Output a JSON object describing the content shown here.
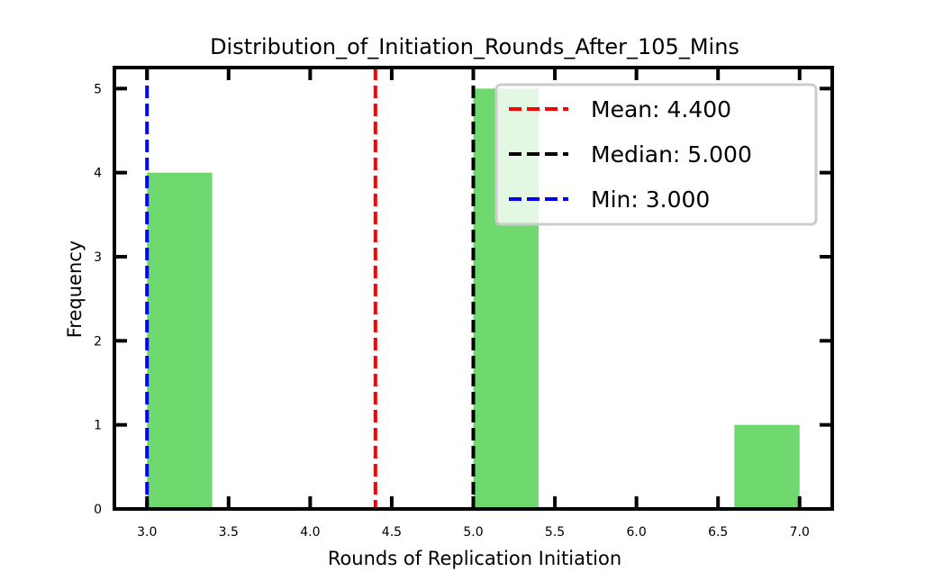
{
  "chart_data": {
    "type": "bar",
    "title": "Distribution_of_Initiation_Rounds_After_105_Mins",
    "xlabel": "Rounds of Replication Initiation",
    "ylabel": "Frequency",
    "xlim": [
      2.8,
      7.2
    ],
    "ylim": [
      0,
      5.25
    ],
    "xticks": [
      "3.0",
      "3.5",
      "4.0",
      "4.5",
      "5.0",
      "5.5",
      "6.0",
      "6.5",
      "7.0"
    ],
    "yticks": [
      "0",
      "1",
      "2",
      "3",
      "4",
      "5"
    ],
    "bins": [
      {
        "x0": 3.0,
        "x1": 3.4,
        "value": 4
      },
      {
        "x0": 3.4,
        "x1": 3.8,
        "value": 0
      },
      {
        "x0": 3.8,
        "x1": 4.2,
        "value": 0
      },
      {
        "x0": 4.2,
        "x1": 4.6,
        "value": 0
      },
      {
        "x0": 4.6,
        "x1": 5.0,
        "value": 0
      },
      {
        "x0": 5.0,
        "x1": 5.4,
        "value": 5
      },
      {
        "x0": 5.4,
        "x1": 5.8,
        "value": 0
      },
      {
        "x0": 5.8,
        "x1": 6.2,
        "value": 0
      },
      {
        "x0": 6.2,
        "x1": 6.6,
        "value": 0
      },
      {
        "x0": 6.6,
        "x1": 7.0,
        "value": 1
      }
    ],
    "bar_color": "#6fd96f",
    "reference_lines": [
      {
        "label": "Mean: 4.400",
        "value": 4.4,
        "color": "#ff0000"
      },
      {
        "label": "Median: 5.000",
        "value": 5.0,
        "color": "#000000"
      },
      {
        "label": "Min: 3.000",
        "value": 3.0,
        "color": "#0000ff"
      }
    ],
    "legend_position": "upper right",
    "grid": false
  }
}
